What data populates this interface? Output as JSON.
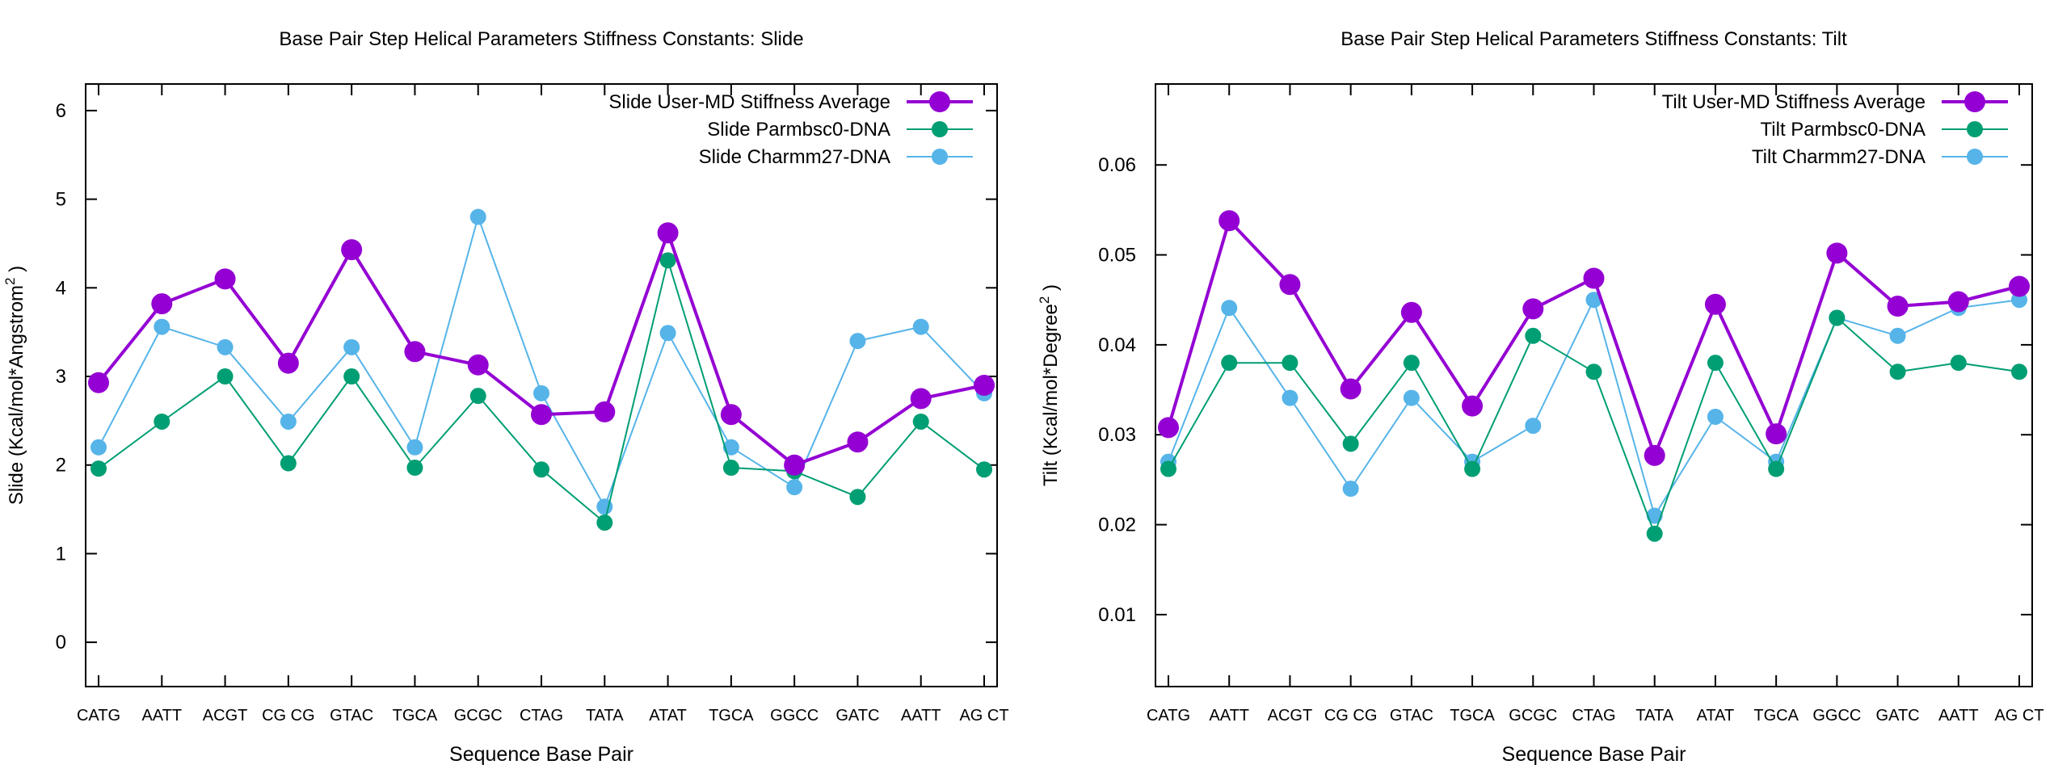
{
  "chart_data": [
    {
      "type": "line",
      "title": "Base Pair Step Helical Parameters Stiffness Constants: Slide",
      "xlabel": "Sequence Base Pair",
      "ylabel": "Slide (Kcal/mol*Angstrom",
      "ylabel_sup": "2",
      "ylabel_close": " )",
      "ylim": [
        -0.5,
        6.3
      ],
      "yticks": [
        0,
        1,
        2,
        3,
        4,
        5,
        6
      ],
      "grid": false,
      "legend_position": "top-right",
      "categories": [
        "CATG",
        "AATT",
        "ACGT",
        "CGCG",
        "GTAC",
        "TGCA",
        "GCGC",
        "CTAG",
        "TATA",
        "ATAT",
        "TGCA",
        "GGCC",
        "GATC",
        "AATT",
        "AGCT"
      ],
      "tick_labels": [
        "CATG",
        "AATT",
        "ACGT",
        "CG CG",
        "GTAC",
        "TGCA",
        "GCGC",
        "CTAG",
        "TATA",
        "ATAT",
        "TGCA",
        "GGCC",
        "GATC",
        "AATT",
        "AG CT"
      ],
      "series": [
        {
          "name": "Slide User-MD Stiffness Average",
          "color": "#9400d3",
          "values": [
            2.93,
            3.82,
            4.1,
            3.15,
            4.43,
            3.28,
            3.13,
            2.57,
            2.6,
            4.62,
            2.57,
            2.0,
            2.26,
            2.75,
            2.9
          ]
        },
        {
          "name": "Slide Parmbsc0-DNA",
          "color": "#009e73",
          "values": [
            1.96,
            2.49,
            3.0,
            2.02,
            3.0,
            1.97,
            2.78,
            1.95,
            1.35,
            4.31,
            1.97,
            1.93,
            1.64,
            2.49,
            1.95
          ]
        },
        {
          "name": "Slide Charmm27-DNA",
          "color": "#56b4e9",
          "values": [
            2.2,
            3.56,
            3.33,
            2.49,
            3.33,
            2.2,
            4.8,
            2.81,
            1.53,
            3.49,
            2.2,
            1.75,
            3.4,
            3.56,
            2.81
          ]
        }
      ]
    },
    {
      "type": "line",
      "title": "Base Pair Step Helical Parameters Stiffness Constants: Tilt",
      "xlabel": "Sequence Base Pair",
      "ylabel": "Tilt (Kcal/mol*Degree",
      "ylabel_sup": "2",
      "ylabel_close": " )",
      "ylim": [
        0.002,
        0.069
      ],
      "yticks": [
        0.01,
        0.02,
        0.03,
        0.04,
        0.05,
        0.06
      ],
      "grid": false,
      "legend_position": "top-right",
      "categories": [
        "CATG",
        "AATT",
        "ACGT",
        "CGCG",
        "GTAC",
        "TGCA",
        "GCGC",
        "CTAG",
        "TATA",
        "ATAT",
        "TGCA",
        "GGCC",
        "GATC",
        "AATT",
        "AGCT"
      ],
      "tick_labels": [
        "CATG",
        "AATT",
        "ACGT",
        "CG CG",
        "GTAC",
        "TGCA",
        "GCGC",
        "CTAG",
        "TATA",
        "ATAT",
        "TGCA",
        "GGCC",
        "GATC",
        "AATT",
        "AG CT"
      ],
      "series": [
        {
          "name": "Tilt User-MD Stiffness Average",
          "color": "#9400d3",
          "values": [
            0.0308,
            0.0538,
            0.0467,
            0.0351,
            0.0436,
            0.0332,
            0.044,
            0.0474,
            0.0277,
            0.0445,
            0.0301,
            0.0502,
            0.0443,
            0.0448,
            0.0465
          ]
        },
        {
          "name": "Tilt Parmbsc0-DNA",
          "color": "#009e73",
          "values": [
            0.0262,
            0.038,
            0.038,
            0.029,
            0.038,
            0.0262,
            0.041,
            0.037,
            0.019,
            0.038,
            0.0262,
            0.043,
            0.037,
            0.038,
            0.037
          ]
        },
        {
          "name": "Tilt Charmm27-DNA",
          "color": "#56b4e9",
          "values": [
            0.027,
            0.0441,
            0.0341,
            0.024,
            0.0341,
            0.027,
            0.031,
            0.045,
            0.021,
            0.032,
            0.027,
            0.043,
            0.041,
            0.0441,
            0.045
          ]
        }
      ]
    }
  ]
}
